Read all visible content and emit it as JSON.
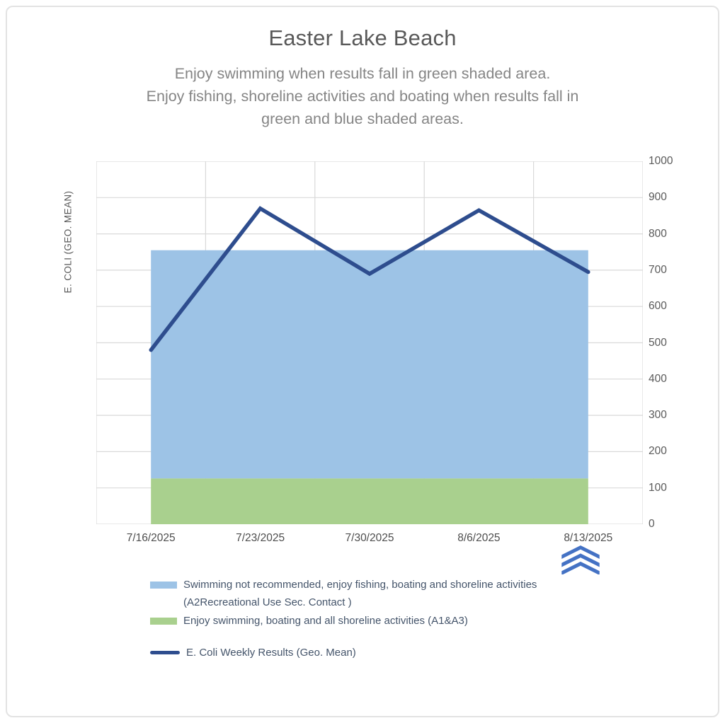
{
  "header": {
    "title": "Easter Lake Beach",
    "subtitle_lines": [
      "Enjoy swimming when results fall in green shaded area.",
      "Enjoy fishing, shoreline activities and boating when results fall in",
      "green and blue shaded areas."
    ]
  },
  "chart_data": {
    "type": "line",
    "title": "Easter Lake Beach",
    "ylabel": "E. COLI (GEO. MEAN)",
    "xlabel": "",
    "categories": [
      "7/16/2025",
      "7/23/2025",
      "7/30/2025",
      "8/6/2025",
      "8/13/2025"
    ],
    "series": [
      {
        "name": "E. Coli Weekly Results (Geo. Mean)",
        "values": [
          480,
          870,
          690,
          865,
          695
        ],
        "color": "#2e4d8e",
        "line_width": 5.5
      }
    ],
    "bands": [
      {
        "name": "Swimming not recommended, enjoy fishing, boating and shoreline activities (A2Recreational Use Sec. Contact )",
        "from": 126,
        "to": 755,
        "color": "#9dc3e6"
      },
      {
        "name": "Enjoy swimming, boating and all shoreline activities (A1&A3)",
        "from": 0,
        "to": 126,
        "color": "#a9d08e"
      }
    ],
    "ylim": [
      0,
      1000
    ],
    "yticks": [
      0,
      100,
      200,
      300,
      400,
      500,
      600,
      700,
      800,
      900,
      1000
    ],
    "grid": true,
    "gridline_color": "#d9d9d9",
    "y_axis_side": "right",
    "legend_position": "bottom"
  },
  "legend": {
    "items": [
      {
        "swatch": "area",
        "color": "#9dc3e6",
        "lines": [
          "Swimming not recommended, enjoy fishing, boating and shoreline activities",
          "(A2Recreational Use Sec. Contact )"
        ]
      },
      {
        "swatch": "area",
        "color": "#a9d08e",
        "lines": [
          "Enjoy swimming, boating and all shoreline activities (A1&A3)"
        ]
      },
      {
        "swatch": "line",
        "color": "#2e4d8e",
        "lines": [
          "E. Coli Weekly Results (Geo. Mean)"
        ]
      }
    ]
  },
  "icons": {
    "scroll_marker": {
      "glyph": "triple-chevron-up",
      "color": "#4472c4"
    }
  }
}
